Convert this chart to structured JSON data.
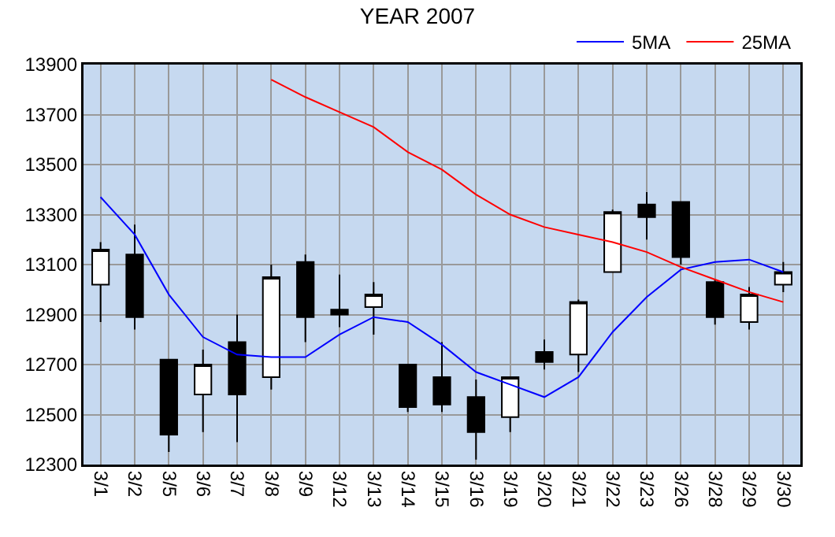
{
  "chart_data": {
    "type": "candlestick",
    "title": "YEAR 2007",
    "categories": [
      "3/1",
      "3/2",
      "3/5",
      "3/6",
      "3/7",
      "3/8",
      "3/9",
      "3/12",
      "3/13",
      "3/14",
      "3/15",
      "3/16",
      "3/19",
      "3/20",
      "3/21",
      "3/22",
      "3/23",
      "3/26",
      "3/28",
      "3/29",
      "3/30"
    ],
    "ohlc": [
      [
        13020,
        13190,
        12870,
        13160
      ],
      [
        13140,
        13260,
        12840,
        12890
      ],
      [
        12720,
        12720,
        12350,
        12420
      ],
      [
        12580,
        12760,
        12430,
        12700
      ],
      [
        12790,
        12900,
        12390,
        12580
      ],
      [
        12650,
        13100,
        12600,
        13050
      ],
      [
        13110,
        13140,
        12790,
        12890
      ],
      [
        12920,
        13060,
        12850,
        12900
      ],
      [
        12930,
        13030,
        12820,
        12980
      ],
      [
        12700,
        12700,
        12510,
        12530
      ],
      [
        12650,
        12790,
        12510,
        12540
      ],
      [
        12570,
        12640,
        12320,
        12430
      ],
      [
        12490,
        12650,
        12430,
        12650
      ],
      [
        12750,
        12800,
        12680,
        12710
      ],
      [
        12740,
        12960,
        12670,
        12950
      ],
      [
        13070,
        13320,
        13070,
        13310
      ],
      [
        13340,
        13390,
        13200,
        13290
      ],
      [
        13350,
        13350,
        13100,
        13130
      ],
      [
        13030,
        13040,
        12860,
        12890
      ],
      [
        12870,
        13010,
        12840,
        12980
      ],
      [
        13020,
        13110,
        12990,
        13070
      ]
    ],
    "series": [
      {
        "type": "line",
        "name": "5MA",
        "color": "#0000ff",
        "values": [
          13370,
          13220,
          12980,
          12810,
          12740,
          12730,
          12730,
          12820,
          12890,
          12870,
          12780,
          12670,
          12620,
          12570,
          12650,
          12830,
          12970,
          13080,
          13110,
          13120,
          13070
        ]
      },
      {
        "type": "line",
        "name": "25MA",
        "color": "#ff0000",
        "values": [
          null,
          null,
          null,
          null,
          null,
          13840,
          13770,
          13710,
          13650,
          13550,
          13480,
          13380,
          13300,
          13250,
          13220,
          13190,
          13150,
          13090,
          13040,
          12990,
          12950
        ]
      }
    ],
    "ylim": [
      12300,
      13900
    ],
    "yticks": [
      12300,
      12500,
      12700,
      12900,
      13100,
      13300,
      13500,
      13700,
      13900
    ],
    "grid": true,
    "legend": "top right",
    "marker": "none",
    "line_style": "solid"
  }
}
